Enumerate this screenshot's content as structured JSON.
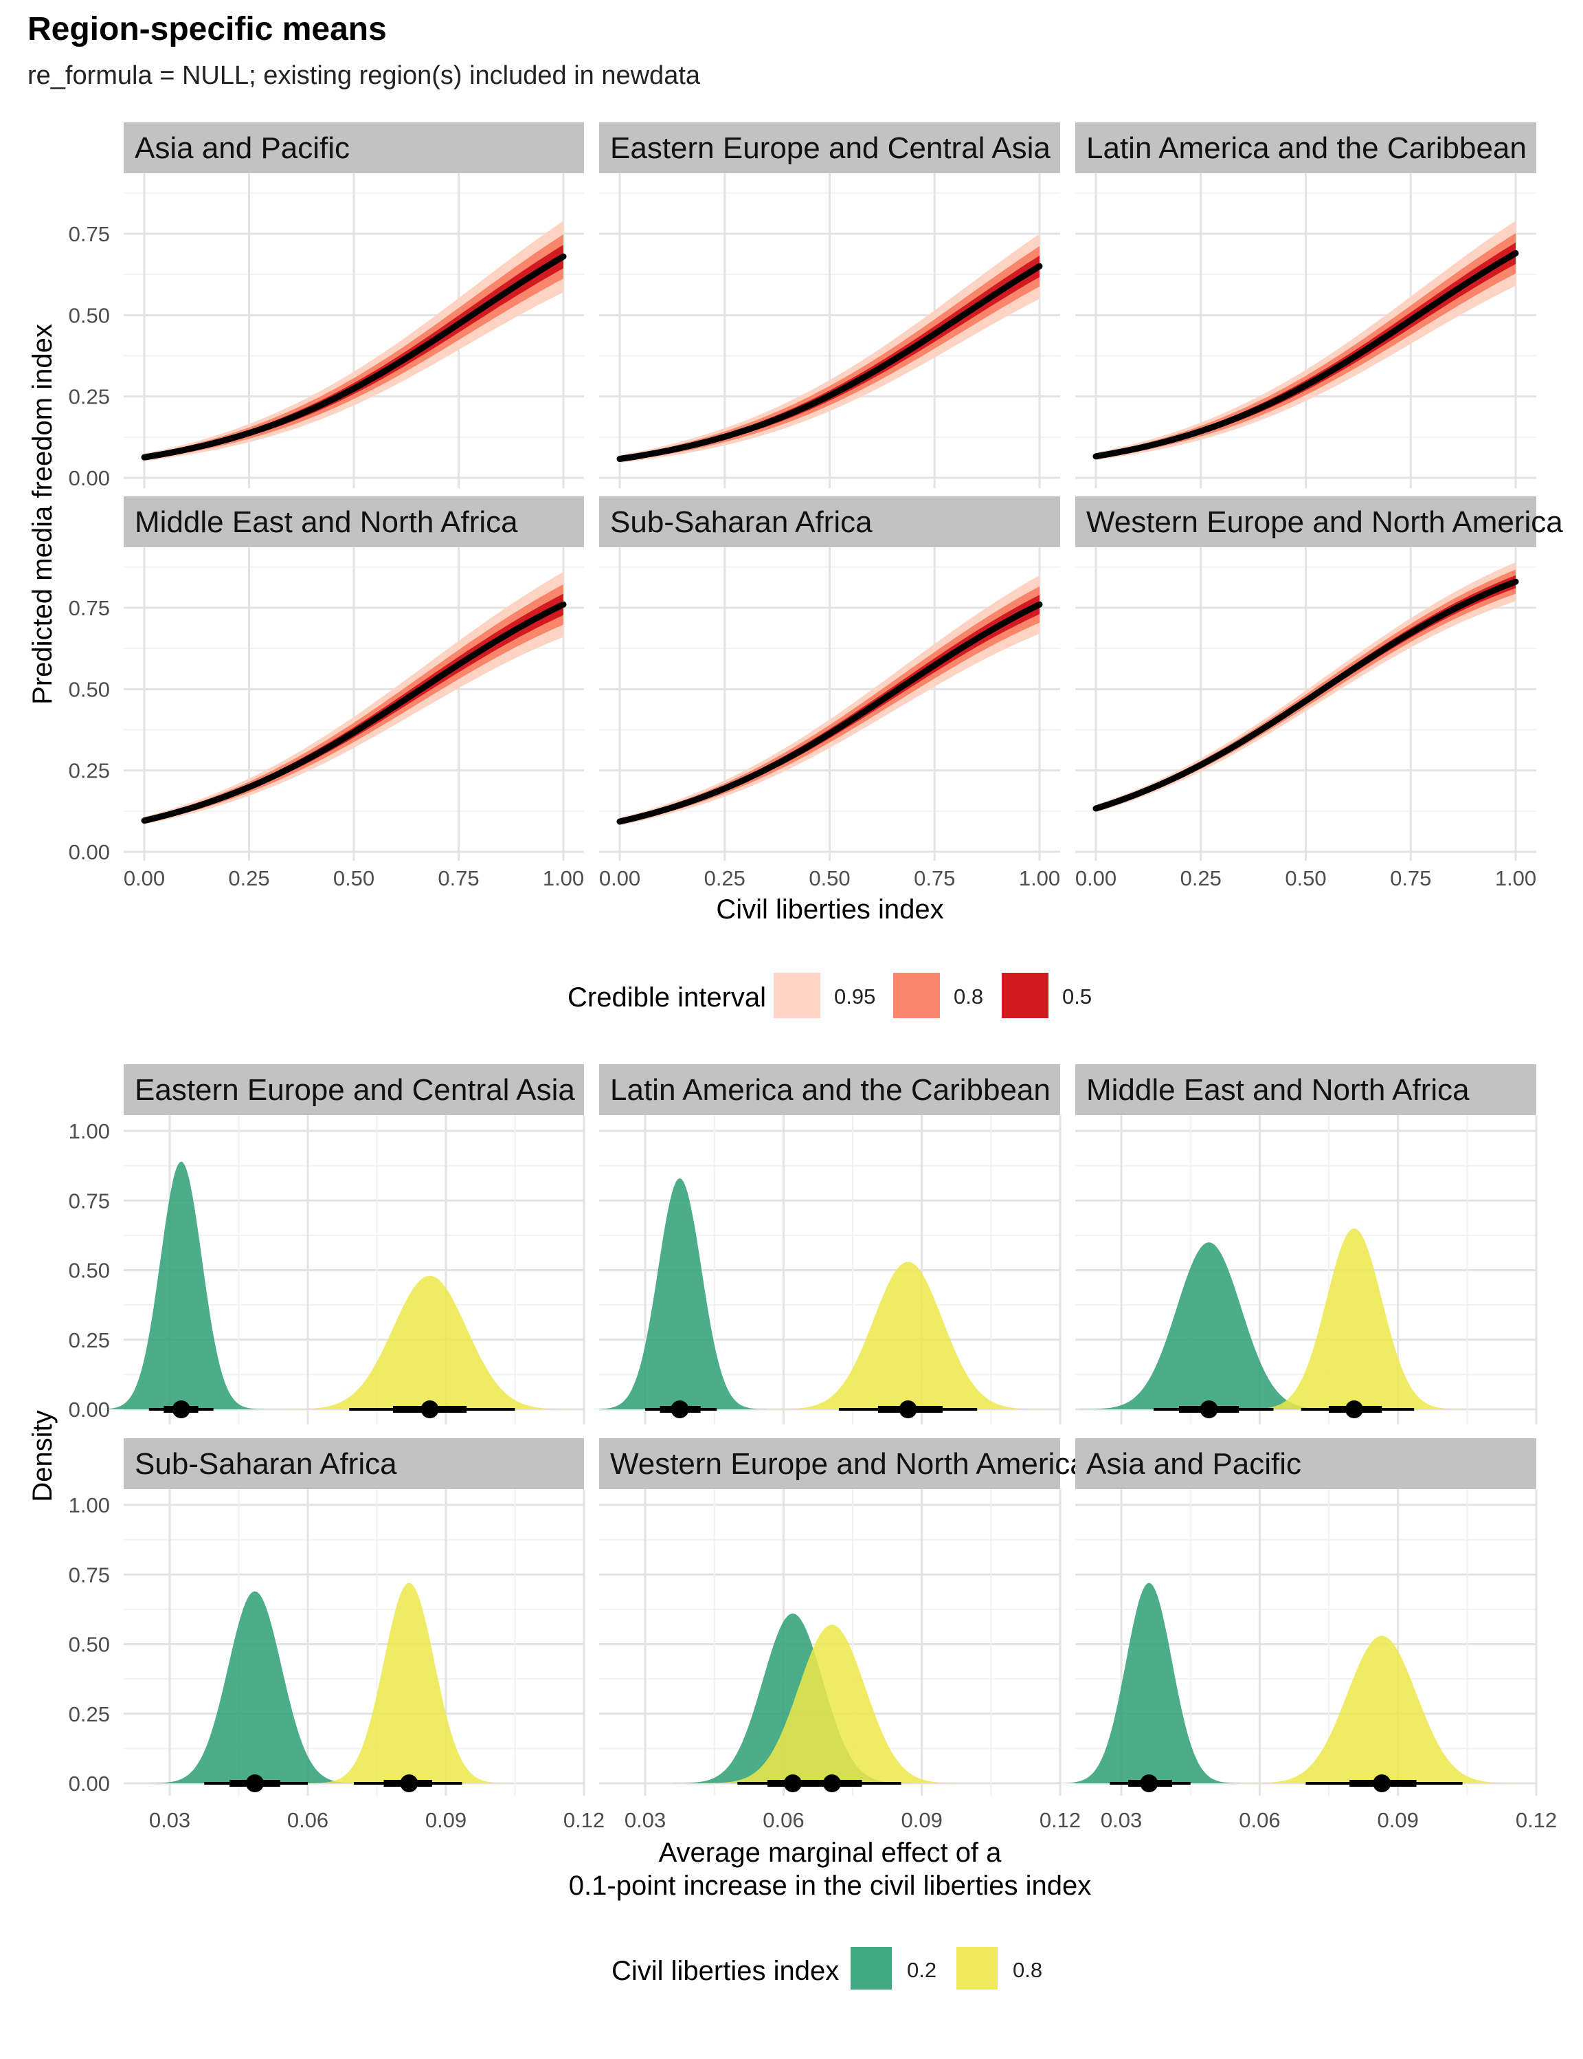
{
  "title": "Region-specific means",
  "subtitle": "re_formula = NULL; existing region(s) included in newdata",
  "colors": {
    "ci95": "#fdd3c4",
    "ci80": "#f9866a",
    "ci50": "#d21b21",
    "line": "#000000",
    "low": "#2ca073",
    "high": "#ede84a",
    "strip": "#c2c2c2",
    "grid": "#e3e3e3"
  },
  "chart_data": [
    {
      "type": "line",
      "title": "",
      "xlabel": "Civil liberties index",
      "ylabel": "Predicted media freedom index",
      "xlim": [
        0,
        1
      ],
      "ylim": [
        0,
        0.9
      ],
      "xticks": [
        "0.00",
        "0.25",
        "0.50",
        "0.75",
        "1.00"
      ],
      "yticks": [
        "0.00",
        "0.25",
        "0.50",
        "0.75"
      ],
      "x": [
        0,
        0.25,
        0.5,
        0.75,
        1
      ],
      "legend": {
        "title": "Credible interval",
        "placement": "bottom",
        "items": [
          {
            "label": "0.95",
            "color": "#fdd3c4"
          },
          {
            "label": "0.8",
            "color": "#f9866a"
          },
          {
            "label": "0.5",
            "color": "#d21b21"
          }
        ]
      },
      "panels": [
        {
          "label": "Asia and Pacific",
          "start": 0.063,
          "end": 0.68,
          "ci95_half_width_end": 0.11
        },
        {
          "label": "Eastern Europe and Central Asia",
          "start": 0.058,
          "end": 0.65,
          "ci95_half_width_end": 0.1
        },
        {
          "label": "Latin America and the Caribbean",
          "start": 0.066,
          "end": 0.69,
          "ci95_half_width_end": 0.1
        },
        {
          "label": "Middle East and North Africa",
          "start": 0.096,
          "end": 0.76,
          "ci95_half_width_end": 0.1
        },
        {
          "label": "Sub-Saharan Africa",
          "start": 0.093,
          "end": 0.76,
          "ci95_half_width_end": 0.09
        },
        {
          "label": "Western Europe and North America",
          "start": 0.133,
          "end": 0.83,
          "ci95_half_width_end": 0.06
        }
      ]
    },
    {
      "type": "area",
      "title": "",
      "xlabel_lines": [
        "Average marginal effect of a",
        "0.1-point increase in the civil liberties index"
      ],
      "ylabel": "Density",
      "xlim": [
        0.02,
        0.12
      ],
      "ylim": [
        0,
        1.05
      ],
      "xticks": [
        "0.03",
        "0.06",
        "0.09",
        "0.12"
      ],
      "yticks": [
        "0.00",
        "0.25",
        "0.50",
        "0.75",
        "1.00"
      ],
      "legend": {
        "title": "Civil liberties index",
        "placement": "bottom",
        "items": [
          {
            "label": "0.2",
            "color": "#2ca073"
          },
          {
            "label": "0.8",
            "color": "#ede84a"
          }
        ]
      },
      "panels": [
        {
          "label": "Eastern Europe and Central Asia",
          "series": [
            {
              "name": "0.2",
              "median": 0.0325,
              "sd": 0.0045,
              "peak": 0.89,
              "ci66": [
                0.0287,
                0.0362
              ],
              "ci95": [
                0.0255,
                0.0395
              ]
            },
            {
              "name": "0.8",
              "median": 0.0865,
              "sd": 0.008,
              "peak": 0.48,
              "ci66": [
                0.0785,
                0.0945
              ],
              "ci95": [
                0.069,
                0.105
              ]
            }
          ]
        },
        {
          "label": "Latin America and the Caribbean",
          "series": [
            {
              "name": "0.2",
              "median": 0.0375,
              "sd": 0.0047,
              "peak": 0.83,
              "ci66": [
                0.0332,
                0.042
              ],
              "ci95": [
                0.03,
                0.0455
              ]
            },
            {
              "name": "0.8",
              "median": 0.087,
              "sd": 0.0075,
              "peak": 0.53,
              "ci66": [
                0.0805,
                0.0945
              ],
              "ci95": [
                0.072,
                0.102
              ]
            }
          ]
        },
        {
          "label": "Middle East and North Africa",
          "series": [
            {
              "name": "0.2",
              "median": 0.049,
              "sd": 0.007,
              "peak": 0.6,
              "ci66": [
                0.0425,
                0.0555
              ],
              "ci95": [
                0.037,
                0.063
              ]
            },
            {
              "name": "0.8",
              "median": 0.0805,
              "sd": 0.006,
              "peak": 0.65,
              "ci66": [
                0.075,
                0.0865
              ],
              "ci95": [
                0.069,
                0.0935
              ]
            }
          ]
        },
        {
          "label": "Sub-Saharan Africa",
          "series": [
            {
              "name": "0.2",
              "median": 0.0485,
              "sd": 0.0058,
              "peak": 0.69,
              "ci66": [
                0.043,
                0.054
              ],
              "ci95": [
                0.0375,
                0.06
              ]
            },
            {
              "name": "0.8",
              "median": 0.082,
              "sd": 0.0055,
              "peak": 0.72,
              "ci66": [
                0.0765,
                0.087
              ],
              "ci95": [
                0.07,
                0.0935
              ]
            }
          ]
        },
        {
          "label": "Western Europe and North America",
          "series": [
            {
              "name": "0.2",
              "median": 0.062,
              "sd": 0.0065,
              "peak": 0.61,
              "ci66": [
                0.0565,
                0.068
              ],
              "ci95": [
                0.05,
                0.0745
              ]
            },
            {
              "name": "0.8",
              "median": 0.0705,
              "sd": 0.0072,
              "peak": 0.57,
              "ci66": [
                0.064,
                0.077
              ],
              "ci95": [
                0.057,
                0.0855
              ]
            }
          ]
        },
        {
          "label": "Asia and Pacific",
          "series": [
            {
              "name": "0.2",
              "median": 0.036,
              "sd": 0.005,
              "peak": 0.72,
              "ci66": [
                0.0315,
                0.041
              ],
              "ci95": [
                0.0275,
                0.045
              ]
            },
            {
              "name": "0.8",
              "median": 0.0865,
              "sd": 0.0075,
              "peak": 0.53,
              "ci66": [
                0.0795,
                0.094
              ],
              "ci95": [
                0.07,
                0.104
              ]
            }
          ]
        }
      ]
    }
  ]
}
